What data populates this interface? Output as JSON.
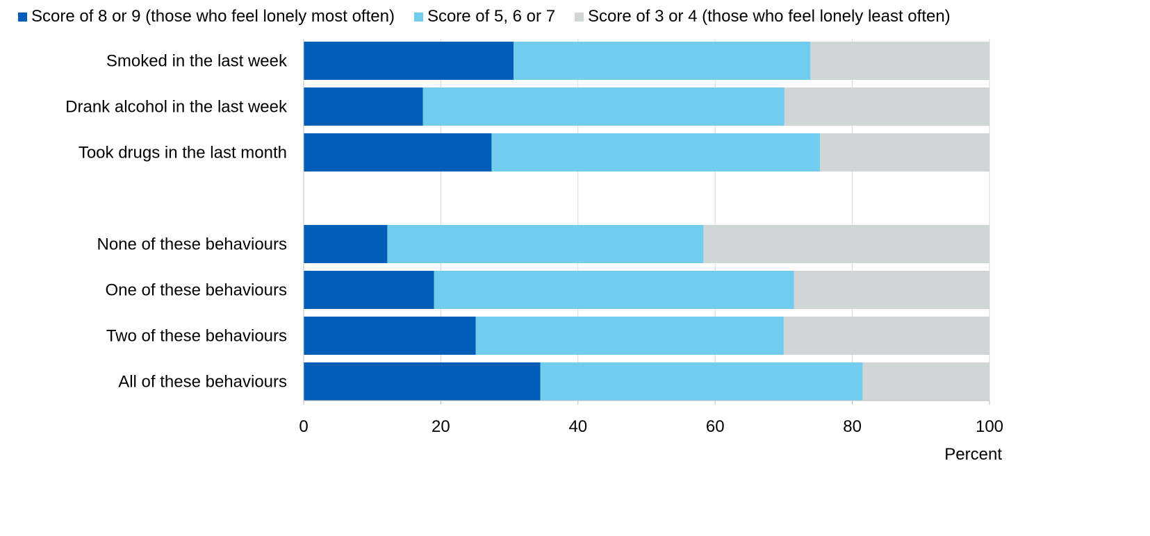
{
  "chart_data": {
    "type": "bar",
    "orientation": "horizontal",
    "stacked": true,
    "categories": [
      "Smoked in the last week",
      "Drank alcohol in the last week",
      "Took drugs in the last month",
      "",
      "None of these behaviours",
      "One of these behaviours",
      "Two of these behaviours",
      "All of these behaviours"
    ],
    "series": [
      {
        "name": "Score of 8 or 9 (those who feel lonely most often)",
        "color": "#005EB8",
        "values": [
          30.6,
          17.4,
          27.4,
          null,
          12.2,
          19.0,
          25.1,
          34.5
        ]
      },
      {
        "name": "Score of 5, 6 or 7",
        "color": "#71CCEE",
        "values": [
          43.3,
          52.7,
          47.9,
          null,
          46.1,
          52.5,
          44.9,
          47.0
        ]
      },
      {
        "name": "Score of 3 or 4 (those who feel lonely least often)",
        "color": "#D0D5D5",
        "values": [
          26.1,
          29.9,
          24.7,
          null,
          41.7,
          28.5,
          30.0,
          18.5
        ]
      }
    ],
    "xlabel": "Percent",
    "ylabel": "",
    "xlim": [
      0,
      100
    ],
    "xticks": [
      "0",
      "20",
      "40",
      "60",
      "80",
      "100"
    ],
    "grid": true,
    "legend_position": "top"
  }
}
